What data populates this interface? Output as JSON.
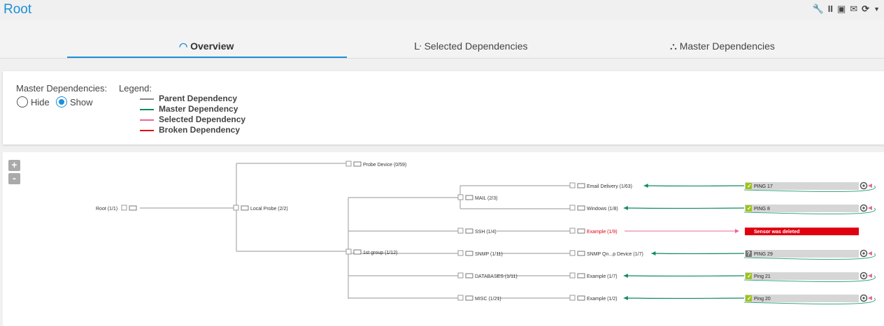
{
  "header": {
    "title": "Root",
    "tools": [
      "wrench-icon",
      "pause-icon",
      "add-report-icon",
      "email-icon",
      "refresh-icon",
      "dropdown-icon"
    ]
  },
  "tabs": [
    {
      "label": "Overview",
      "icon": "gauge-icon",
      "active": true
    },
    {
      "label": "Selected Dependencies",
      "icon": "dependency-icon"
    },
    {
      "label": "Master Dependencies",
      "icon": "hierarchy-icon"
    }
  ],
  "legend": {
    "master_label": "Master Dependencies:",
    "hide": "Hide",
    "show": "Show",
    "selected": "Show",
    "legend_label": "Legend:",
    "items": [
      {
        "label": "Parent Dependency",
        "color": "#888888"
      },
      {
        "label": "Master Dependency",
        "color": "#0e8a5f"
      },
      {
        "label": "Selected Dependency",
        "color": "#e8669a"
      },
      {
        "label": "Broken Dependency",
        "color": "#e00010"
      }
    ]
  },
  "zoom": {
    "in": "+",
    "out": "-"
  },
  "tree": {
    "root": "Root (1/1)",
    "probe": "Local Probe (2/2)",
    "probe_device": "Probe Device (0/59)",
    "group": "1st group (1/12)",
    "subgroups": [
      "MAIL (2/3)",
      "SSH (1/4)",
      "SNMP (1/11)",
      "DATABASES (1/11)",
      "MISC (1/21)"
    ],
    "devices": [
      {
        "label": "Email Delivery (1/63)",
        "sensor": "PING 17",
        "status": "ok",
        "dep": "master"
      },
      {
        "label": "Windows (1/8)",
        "sensor": "PING 8",
        "status": "ok",
        "dep": "master"
      },
      {
        "label": "Example (1/9)",
        "sensor": "Sensor was deleted",
        "status": "deleted",
        "dep": "broken"
      },
      {
        "label": "SNMP Qn...p Device (1/7)",
        "sensor": "PING 29",
        "status": "unknown",
        "dep": "master"
      },
      {
        "label": "Example (1/7)",
        "sensor": "Ping 21",
        "status": "ok",
        "dep": "master"
      },
      {
        "label": "Example (1/2)",
        "sensor": "Ping 20",
        "status": "ok",
        "dep": "master"
      }
    ]
  }
}
